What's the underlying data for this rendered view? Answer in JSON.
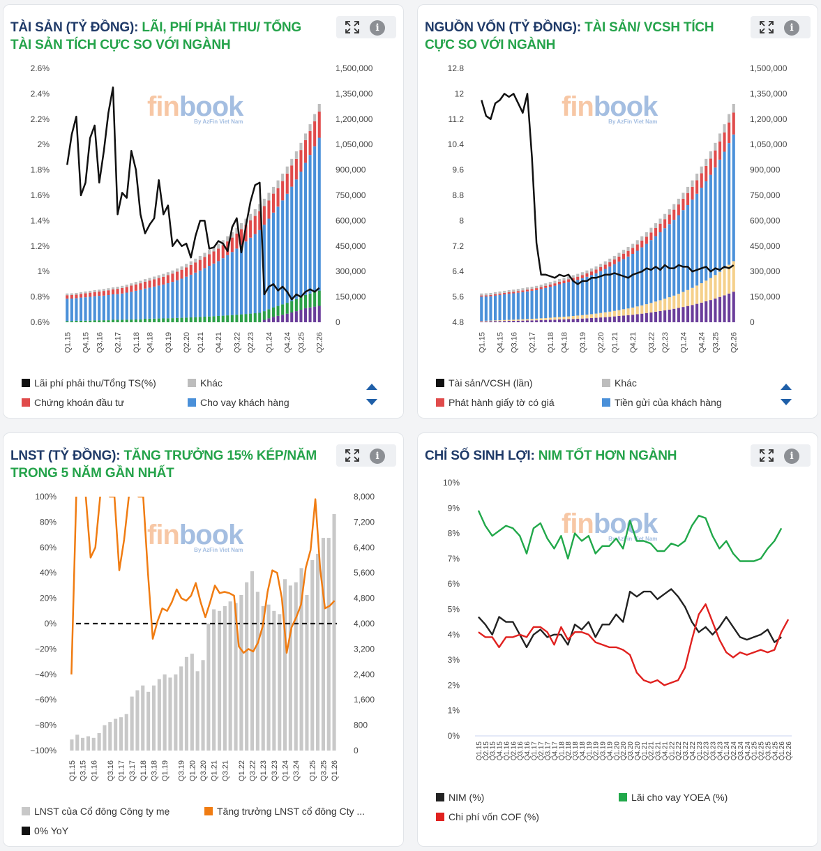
{
  "panels": [
    {
      "title_main": "TÀI SẢN (TỶ ĐỒNG):",
      "title_accent": "LÃI, PHÍ PHẢI THU/ TỔNG TÀI SẢN TÍCH CỰC SO VỚI NGÀNH",
      "watermark": {
        "main_a": "fin",
        "main_b": "book",
        "sub": "By AzFin Viet Nam"
      },
      "legend": [
        {
          "label": "Lãi phí phải thu/Tổng TS(%)",
          "color": "#111111"
        },
        {
          "label": "Khác",
          "color": "#bdbdbd"
        },
        {
          "label": "Chứng khoán đầu tư",
          "color": "#e04b4b"
        },
        {
          "label": "Cho vay khách hàng",
          "color": "#4a90d9"
        }
      ]
    },
    {
      "title_main": "NGUỒN VỐN (TỶ ĐỒNG):",
      "title_accent": "TÀI SẢN/ VCSH TÍCH CỰC SO VỚI NGÀNH",
      "watermark": {
        "main_a": "fin",
        "main_b": "book",
        "sub": "By AzFin Viet Nam"
      },
      "legend": [
        {
          "label": "Tài sản/VCSH (lần)",
          "color": "#111111"
        },
        {
          "label": "Khác",
          "color": "#bdbdbd"
        },
        {
          "label": "Phát hành giấy tờ có giá",
          "color": "#e04b4b"
        },
        {
          "label": "Tiền gửi của khách hàng",
          "color": "#4a90d9"
        }
      ]
    },
    {
      "title_main": "LNST (TỶ ĐỒNG):",
      "title_accent": "TĂNG TRƯỞNG 15% KÉP/NĂM TRONG 5 NĂM GẦN NHẤT",
      "watermark": {
        "main_a": "fin",
        "main_b": "book",
        "sub": "By AzFin Viet Nam"
      },
      "legend": [
        {
          "label": "LNST của Cổ đông Công ty mẹ",
          "color": "#c8c8c8"
        },
        {
          "label": "Tăng trưởng LNST cổ đông Cty ...",
          "color": "#f07c12"
        },
        {
          "label": "0% YoY",
          "color": "#111111"
        }
      ]
    },
    {
      "title_main": "CHỈ SỐ SINH LỢI:",
      "title_accent": "NIM TỐT HƠN NGÀNH",
      "watermark": {
        "main_a": "fin",
        "main_b": "book",
        "sub": "By AzFin Viet Nam"
      },
      "legend": [
        {
          "label": "NIM (%)",
          "color": "#222222"
        },
        {
          "label": "Lãi cho vay YOEA (%)",
          "color": "#21a84a"
        },
        {
          "label": "Chi phí vốn COF (%)",
          "color": "#e0211f"
        }
      ]
    }
  ],
  "chart_data": [
    {
      "type": "bar",
      "stacked": true,
      "x_tick_labels": [
        "Q1.15",
        "Q4.15",
        "Q3.16",
        "Q2.17",
        "Q1.18",
        "Q4.18",
        "Q3.19",
        "Q2.20",
        "Q1.21",
        "Q4.21",
        "Q3.22",
        "Q2.23",
        "Q1.24",
        "Q4.24",
        "Q3.25",
        "Q2.26"
      ],
      "left_axis_ticks": [
        "0.6%",
        "0.8%",
        "1%",
        "1.2%",
        "1.4%",
        "1.6%",
        "1.8%",
        "2%",
        "2.2%",
        "2.4%",
        "2.6%"
      ],
      "right_axis_ticks": [
        "0",
        "150,000",
        "300,000",
        "450,000",
        "600,000",
        "750,000",
        "900,000",
        "1,050,000",
        "1,200,000",
        "1,350,000",
        "1,500,000"
      ],
      "ylim_left": [
        0.6,
        2.6
      ],
      "ylim_right": [
        0,
        1500000
      ],
      "stack_order": [
        "#6a3d9a",
        "#2ca048",
        "#4a90d9",
        "#e04b4b",
        "#bdbdbd"
      ],
      "bar_total_right": [
        170000,
        171000,
        173000,
        178000,
        182000,
        186000,
        190000,
        193000,
        197000,
        201000,
        206000,
        210000,
        215000,
        222000,
        230000,
        238000,
        245000,
        255000,
        262000,
        270000,
        278000,
        286000,
        296000,
        306000,
        318000,
        330000,
        345000,
        360000,
        376000,
        392000,
        410000,
        428000,
        445000,
        463000,
        485000,
        508000,
        532000,
        558000,
        585000,
        612000,
        640000,
        668000,
        698000,
        730000,
        765000,
        800000,
        838000,
        878000,
        920000,
        965000,
        1010000,
        1060000,
        1115000,
        1170000,
        1230000,
        1290000
      ],
      "stack_fractions": {
        "purple": [
          0,
          0,
          0,
          0,
          0,
          0,
          0,
          0,
          0,
          0,
          0,
          0,
          0,
          0,
          0,
          0,
          0,
          0,
          0,
          0,
          0,
          0,
          0,
          0,
          0,
          0,
          0,
          0,
          0,
          0,
          0,
          0,
          0,
          0,
          0,
          0,
          0,
          0,
          0,
          0,
          0,
          0,
          0,
          0.02,
          0.03,
          0.04,
          0.045,
          0.05,
          0.055,
          0.06,
          0.065,
          0.07,
          0.075,
          0.075,
          0.075,
          0.075
        ],
        "green": [
          0.04,
          0.04,
          0.05,
          0.05,
          0.05,
          0.05,
          0.06,
          0.06,
          0.06,
          0.06,
          0.07,
          0.07,
          0.07,
          0.07,
          0.07,
          0.07,
          0.07,
          0.08,
          0.08,
          0.08,
          0.08,
          0.08,
          0.08,
          0.08,
          0.08,
          0.08,
          0.08,
          0.08,
          0.08,
          0.08,
          0.08,
          0.08,
          0.08,
          0.08,
          0.08,
          0.08,
          0.08,
          0.08,
          0.08,
          0.08,
          0.08,
          0.08,
          0.08,
          0.07,
          0.07,
          0.07,
          0.07,
          0.07,
          0.07,
          0.07,
          0.07,
          0.07,
          0.07,
          0.07,
          0.07,
          0.07
        ],
        "blue": [
          0.78,
          0.78,
          0.77,
          0.77,
          0.76,
          0.76,
          0.75,
          0.75,
          0.74,
          0.74,
          0.73,
          0.72,
          0.72,
          0.72,
          0.71,
          0.71,
          0.71,
          0.7,
          0.7,
          0.7,
          0.7,
          0.7,
          0.7,
          0.7,
          0.7,
          0.7,
          0.7,
          0.7,
          0.7,
          0.7,
          0.7,
          0.7,
          0.7,
          0.7,
          0.7,
          0.7,
          0.7,
          0.7,
          0.7,
          0.7,
          0.7,
          0.7,
          0.7,
          0.7,
          0.7,
          0.7,
          0.7,
          0.7,
          0.7,
          0.7,
          0.7,
          0.7,
          0.7,
          0.7,
          0.7,
          0.7
        ],
        "red": [
          0.12,
          0.12,
          0.12,
          0.12,
          0.13,
          0.13,
          0.13,
          0.13,
          0.14,
          0.14,
          0.14,
          0.15,
          0.15,
          0.15,
          0.16,
          0.16,
          0.16,
          0.16,
          0.16,
          0.16,
          0.16,
          0.16,
          0.16,
          0.16,
          0.16,
          0.16,
          0.16,
          0.16,
          0.16,
          0.16,
          0.16,
          0.16,
          0.16,
          0.16,
          0.16,
          0.16,
          0.16,
          0.16,
          0.16,
          0.16,
          0.16,
          0.16,
          0.16,
          0.15,
          0.14,
          0.14,
          0.13,
          0.13,
          0.13,
          0.13,
          0.12,
          0.12,
          0.12,
          0.12,
          0.12,
          0.12
        ]
      },
      "line_left": [
        1.84,
        2.08,
        2.22,
        1.6,
        1.7,
        2.05,
        2.15,
        1.7,
        1.95,
        2.25,
        2.45,
        1.45,
        1.62,
        1.58,
        1.95,
        1.8,
        1.45,
        1.3,
        1.37,
        1.42,
        1.72,
        1.45,
        1.52,
        1.2,
        1.25,
        1.2,
        1.22,
        1.11,
        1.28,
        1.4,
        1.4,
        1.18,
        1.19,
        1.24,
        1.22,
        1.16,
        1.35,
        1.42,
        1.15,
        1.36,
        1.55,
        1.68,
        1.7,
        0.82,
        0.88,
        0.9,
        0.85,
        0.88,
        0.84,
        0.78,
        0.82,
        0.8,
        0.84,
        0.86,
        0.84,
        0.87
      ]
    },
    {
      "type": "bar",
      "stacked": true,
      "x_tick_labels": [
        "Q1.15",
        "Q4.15",
        "Q3.16",
        "Q2.17",
        "Q1.18",
        "Q4.18",
        "Q3.19",
        "Q2.20",
        "Q1.21",
        "Q4.21",
        "Q3.22",
        "Q2.23",
        "Q1.24",
        "Q4.24",
        "Q3.25",
        "Q2.26"
      ],
      "left_axis_ticks": [
        "4.8",
        "5.6",
        "6.4",
        "7.2",
        "8",
        "8.8",
        "9.6",
        "10.4",
        "11.2",
        "12",
        "12.8"
      ],
      "right_axis_ticks": [
        "0",
        "150,000",
        "300,000",
        "450,000",
        "600,000",
        "750,000",
        "900,000",
        "1,050,000",
        "1,200,000",
        "1,350,000",
        "1,500,000"
      ],
      "ylim_left": [
        4.8,
        12.8
      ],
      "ylim_right": [
        0,
        1500000
      ],
      "stack_order": [
        "#6a3d9a",
        "#f5d08a",
        "#4a90d9",
        "#e04b4b",
        "#bdbdbd"
      ],
      "bar_total_right": [
        170000,
        171000,
        173000,
        178000,
        182000,
        186000,
        190000,
        193000,
        197000,
        201000,
        206000,
        210000,
        215000,
        222000,
        230000,
        238000,
        245000,
        255000,
        262000,
        270000,
        278000,
        286000,
        296000,
        306000,
        318000,
        330000,
        345000,
        360000,
        376000,
        392000,
        410000,
        428000,
        445000,
        463000,
        485000,
        508000,
        532000,
        558000,
        585000,
        612000,
        640000,
        668000,
        698000,
        730000,
        765000,
        800000,
        838000,
        878000,
        920000,
        965000,
        1010000,
        1060000,
        1115000,
        1170000,
        1230000,
        1290000
      ],
      "line_left": [
        11.8,
        11.3,
        11.2,
        11.7,
        11.8,
        12.0,
        11.9,
        12.0,
        11.7,
        11.4,
        12.0,
        10.0,
        7.3,
        6.3,
        6.3,
        6.25,
        6.2,
        6.3,
        6.25,
        6.3,
        6.1,
        6.0,
        6.1,
        6.1,
        6.2,
        6.2,
        6.25,
        6.3,
        6.3,
        6.35,
        6.3,
        6.25,
        6.2,
        6.3,
        6.35,
        6.4,
        6.5,
        6.45,
        6.55,
        6.45,
        6.6,
        6.5,
        6.5,
        6.6,
        6.55,
        6.55,
        6.4,
        6.45,
        6.5,
        6.55,
        6.4,
        6.5,
        6.45,
        6.55,
        6.5,
        6.6
      ]
    },
    {
      "type": "bar",
      "x_tick_labels": [
        "Q1.15",
        "Q3.15",
        "Q1.16",
        "Q3.16",
        "Q1.17",
        "Q3.17",
        "Q1.18",
        "Q3.18",
        "Q1.19",
        "Q3.19",
        "Q1.20",
        "Q3.20",
        "Q1.21",
        "Q3.21",
        "Q1.22",
        "Q3.22",
        "Q1.23",
        "Q3.23",
        "Q1.24",
        "Q3.24",
        "Q1.25",
        "Q3.25",
        "Q1.26"
      ],
      "left_axis_ticks": [
        "−100%",
        "−80%",
        "−60%",
        "−40%",
        "−20%",
        "0%",
        "20%",
        "40%",
        "60%",
        "80%",
        "100%"
      ],
      "right_axis_ticks": [
        "0",
        "800",
        "1,600",
        "2,400",
        "3,200",
        "4,000",
        "4,800",
        "5,600",
        "6,400",
        "7,200",
        "8,000"
      ],
      "ylim_left": [
        -100,
        100
      ],
      "ylim_right": [
        0,
        8000
      ],
      "series": [
        {
          "name": "LNST của Cổ đông Công ty mẹ",
          "values": [
            350,
            500,
            400,
            450,
            400,
            550,
            800,
            900,
            1000,
            1050,
            1150,
            1700,
            1900,
            2050,
            1850,
            2050,
            2250,
            2400,
            2300,
            2400,
            2650,
            2950,
            3050,
            2500,
            2850,
            4000,
            4450,
            4400,
            4550,
            4700,
            4650,
            4900,
            5300,
            5650,
            5000,
            4550,
            4600,
            4400,
            4300,
            5400,
            5200,
            5300,
            5750,
            4900,
            6000,
            6200,
            6700,
            6700,
            7450
          ]
        },
        {
          "name": "Tăng trưởng LNST cổ đông Cty ...",
          "values": [
            -40,
            100,
            110,
            100,
            52,
            60,
            100,
            110,
            100,
            100,
            42,
            66,
            100,
            110,
            100,
            100,
            40,
            -12,
            2,
            12,
            10,
            17,
            27,
            20,
            18,
            22,
            32,
            17,
            5,
            17,
            30,
            24,
            25,
            24,
            22,
            -18,
            -23,
            -20,
            -22,
            -15,
            -2,
            25,
            42,
            40,
            20,
            -23,
            -3,
            5,
            15,
            44,
            58,
            98,
            43,
            12,
            14,
            18
          ]
        },
        {
          "name": "0% YoY",
          "values": [
            0
          ]
        }
      ]
    },
    {
      "type": "line",
      "x_tick_labels": [
        "Q1.15",
        "Q2.15",
        "Q3.15",
        "Q4.15",
        "Q1.16",
        "Q2.16",
        "Q3.16",
        "Q4.16",
        "Q1.17",
        "Q2.17",
        "Q3.17",
        "Q4.17",
        "Q1.18",
        "Q2.18",
        "Q3.18",
        "Q4.18",
        "Q1.19",
        "Q2.19",
        "Q3.19",
        "Q4.19",
        "Q1.20",
        "Q2.20",
        "Q3.20",
        "Q4.20",
        "Q1.21",
        "Q2.21",
        "Q3.21",
        "Q4.21",
        "Q1.22",
        "Q2.22",
        "Q3.22",
        "Q4.22",
        "Q1.23",
        "Q2.23",
        "Q3.23",
        "Q4.23",
        "Q1.24",
        "Q2.24",
        "Q3.24",
        "Q4.24",
        "Q1.25",
        "Q2.25",
        "Q3.25",
        "Q4.25",
        "Q1.26",
        "Q2.26"
      ],
      "left_axis_ticks": [
        "0%",
        "1%",
        "2%",
        "3%",
        "4%",
        "5%",
        "6%",
        "7%",
        "8%",
        "9%",
        "10%"
      ],
      "ylim": [
        0,
        10
      ],
      "series": [
        {
          "name": "NIM (%)",
          "values": [
            4.7,
            4.4,
            4.0,
            4.7,
            4.5,
            4.5,
            4.0,
            3.5,
            4.0,
            4.2,
            3.9,
            4.0,
            4.0,
            3.6,
            4.4,
            4.2,
            4.5,
            3.9,
            4.4,
            4.4,
            4.8,
            4.5,
            5.7,
            5.5,
            5.7,
            5.7,
            5.4,
            5.6,
            5.8,
            5.5,
            5.1,
            4.5,
            4.1,
            4.3,
            4.0,
            4.3,
            4.7,
            4.3,
            3.9,
            3.8,
            3.9,
            4.0,
            4.2,
            3.7,
            3.9
          ]
        },
        {
          "name": "Lãi cho vay YOEA (%)",
          "values": [
            8.9,
            8.3,
            7.9,
            8.1,
            8.3,
            8.2,
            7.9,
            7.2,
            8.2,
            8.4,
            7.8,
            7.4,
            7.9,
            7.0,
            8.0,
            7.7,
            7.9,
            7.2,
            7.5,
            7.5,
            7.8,
            7.4,
            8.5,
            7.7,
            7.7,
            7.6,
            7.3,
            7.3,
            7.6,
            7.5,
            7.7,
            8.3,
            8.7,
            8.6,
            7.9,
            7.4,
            7.7,
            7.2,
            6.9,
            6.9,
            6.9,
            7.0,
            7.4,
            7.7,
            8.2
          ]
        },
        {
          "name": "Chi phí vốn COF (%)",
          "values": [
            4.1,
            3.9,
            3.9,
            3.5,
            3.9,
            3.9,
            4.0,
            3.9,
            4.3,
            4.3,
            4.1,
            3.6,
            4.3,
            3.8,
            4.1,
            4.1,
            4.0,
            3.7,
            3.6,
            3.5,
            3.5,
            3.4,
            3.2,
            2.5,
            2.2,
            2.1,
            2.2,
            2.0,
            2.1,
            2.2,
            2.7,
            3.8,
            4.8,
            5.2,
            4.5,
            3.8,
            3.3,
            3.1,
            3.3,
            3.2,
            3.3,
            3.4,
            3.3,
            3.4,
            4.1,
            4.6
          ]
        }
      ]
    }
  ]
}
